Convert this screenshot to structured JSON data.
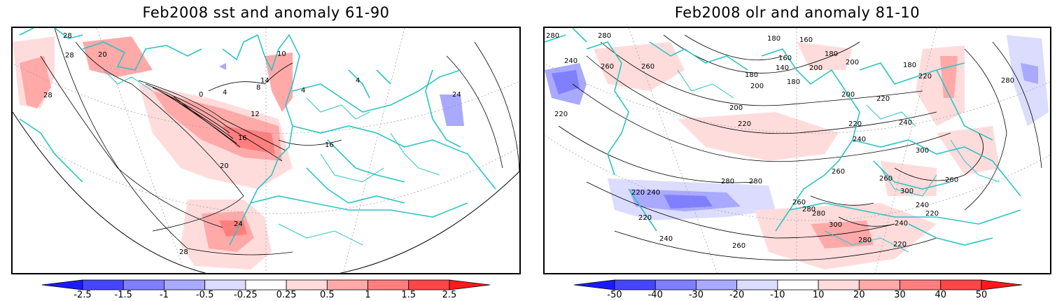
{
  "panels": [
    {
      "title": "Feb2008 sst and anomaly 61-90",
      "contour_labels": [
        "28",
        "28",
        "28",
        "20",
        "0",
        "4",
        "8",
        "12",
        "16",
        "20",
        "24",
        "24",
        "28",
        "16",
        "4",
        "4",
        "10",
        "14"
      ]
    },
    {
      "title": "Feb2008 olr and anomaly 81-10",
      "contour_labels": [
        "280",
        "280",
        "240",
        "260",
        "260",
        "220",
        "280",
        "240",
        "220",
        "220",
        "240",
        "260",
        "280",
        "180",
        "160",
        "160",
        "140",
        "180",
        "180",
        "200",
        "200",
        "200",
        "220",
        "220",
        "240",
        "260",
        "280",
        "300",
        "300",
        "280",
        "260",
        "240",
        "220",
        "300",
        "280",
        "260",
        "240",
        "220",
        "180",
        "200",
        "220",
        "280",
        "260",
        "240",
        "220",
        "180",
        "200"
      ]
    }
  ],
  "colorbars": [
    {
      "labels": [
        "-2.5",
        "-1.5",
        "-1",
        "-0.5",
        "-0.25",
        "0.25",
        "0.5",
        "1",
        "1.5",
        "2.5"
      ],
      "colors": [
        "#1b1bff",
        "#4646ff",
        "#7f7fff",
        "#a9a9ff",
        "#dcdcff",
        "#ffffff",
        "#ffdcdc",
        "#ffa9a9",
        "#ff7f7f",
        "#ff4646",
        "#ff1b1b"
      ]
    },
    {
      "labels": [
        "-50",
        "-40",
        "-30",
        "-20",
        "-10",
        "10",
        "20",
        "30",
        "40",
        "50"
      ],
      "colors": [
        "#1b1bff",
        "#4646ff",
        "#7f7fff",
        "#a9a9ff",
        "#dcdcff",
        "#ffffff",
        "#ffdcdc",
        "#ffa9a9",
        "#ff7f7f",
        "#ff4646",
        "#ff1b1b"
      ]
    }
  ]
}
